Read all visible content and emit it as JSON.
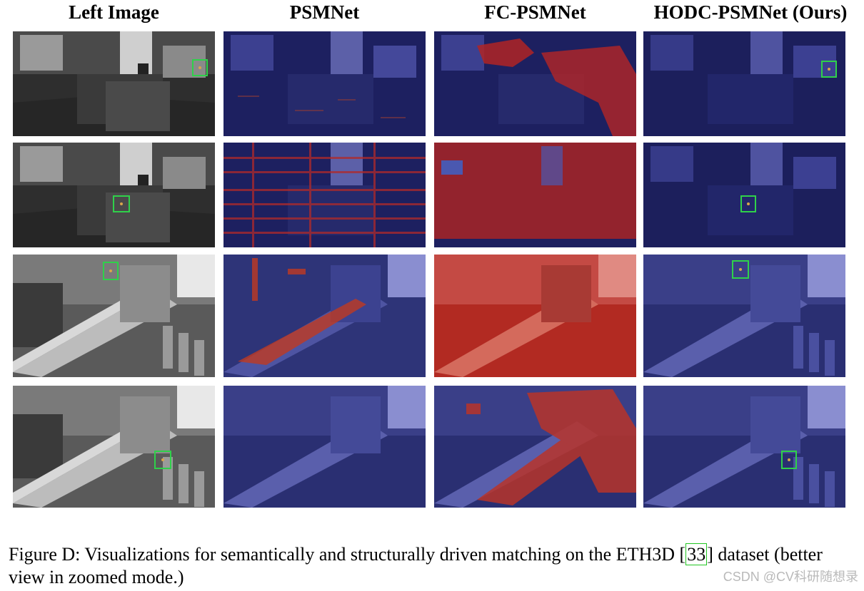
{
  "figure": {
    "columns": [
      "Left Image",
      "PSMNet",
      "FC-PSMNet",
      "HODC-PSMNet (Ours)"
    ],
    "caption": {
      "prefix": "Figure D: Visualizations for semantically and structurally driven matching on the ETH3D [",
      "citation": "33",
      "suffix": "] dataset (better view in zoomed mode.)"
    },
    "watermark": "CSDN @CV科研随想录"
  }
}
